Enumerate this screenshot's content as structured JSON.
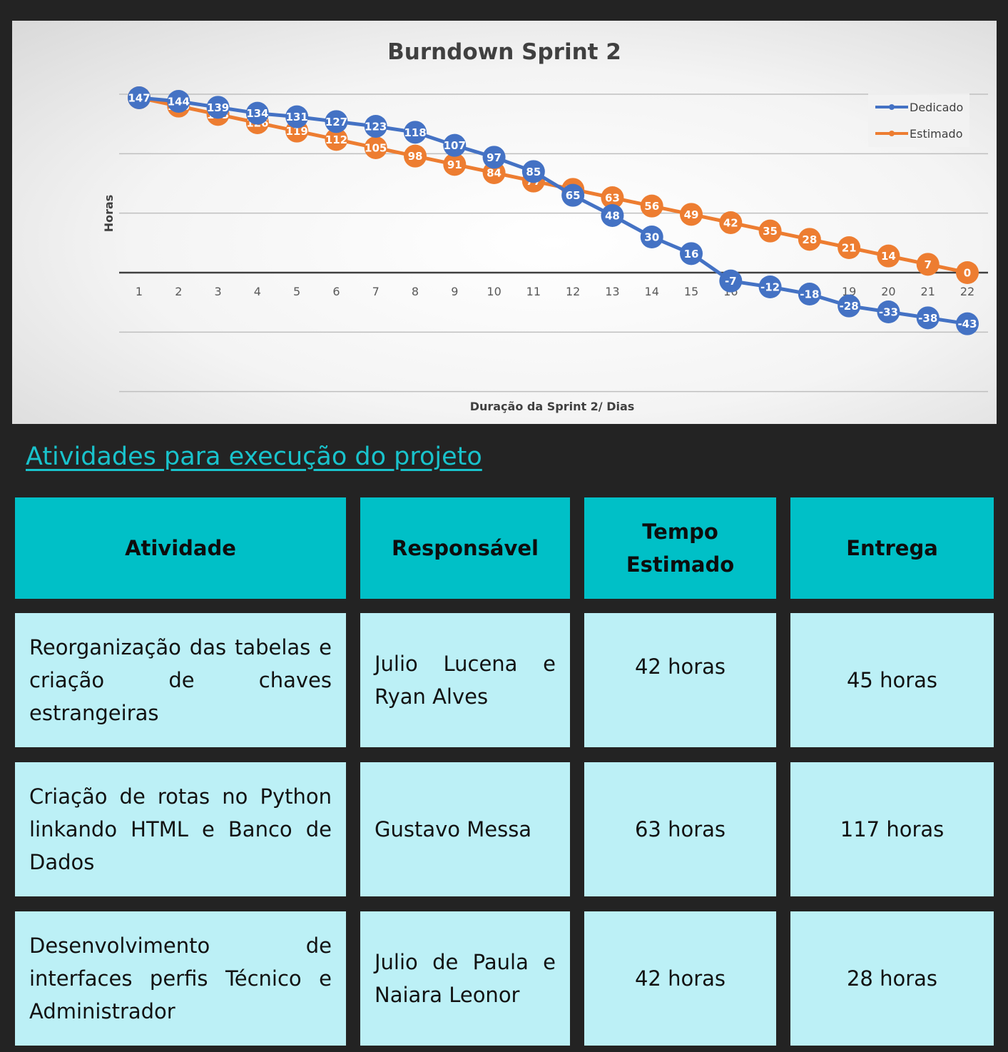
{
  "chart_data": {
    "type": "line",
    "title": "Burndown Sprint 2",
    "xlabel": "Duração da Sprint 2/ Dias",
    "ylabel": "Horas",
    "x": [
      1,
      2,
      3,
      4,
      5,
      6,
      7,
      8,
      9,
      10,
      11,
      12,
      13,
      14,
      15,
      16,
      17,
      18,
      19,
      20,
      21,
      22
    ],
    "series": [
      {
        "name": "Dedicado",
        "color": "#4472c4",
        "values": [
          147,
          144,
          139,
          134,
          131,
          127,
          123,
          118,
          107,
          97,
          85,
          65,
          48,
          30,
          16,
          -7,
          -12,
          -18,
          -28,
          -33,
          -38,
          -43
        ]
      },
      {
        "name": "Estimado",
        "color": "#ed7d31",
        "values": [
          147,
          140,
          133,
          126,
          119,
          112,
          105,
          98,
          91,
          84,
          77,
          70,
          63,
          56,
          49,
          42,
          35,
          28,
          21,
          14,
          7,
          0
        ]
      }
    ],
    "ylim": [
      -100,
      175
    ],
    "grid": true,
    "legend": "top-right"
  },
  "section": {
    "title": "Atividades para execução do projeto"
  },
  "table": {
    "headers": {
      "atividade": "Atividade",
      "responsavel": "Responsável",
      "tempo": "Tempo Estimado",
      "entrega": "Entrega"
    },
    "rows": [
      {
        "atividade": "Reorganização das tabelas e criação de chaves estrangeiras",
        "responsavel": "Julio Lucena e Ryan Alves",
        "tempo": "42 horas",
        "entrega": "45 horas"
      },
      {
        "atividade": "Criação de rotas no Python linkando HTML e Banco de Dados",
        "responsavel": "Gustavo Messa",
        "tempo": "63 horas",
        "entrega": "117 horas"
      },
      {
        "atividade": "Desenvolvimento de interfaces perfis Técnico e Administrador",
        "responsavel": "Julio de Paula e Naiara Leonor",
        "tempo": "42 horas",
        "entrega": "28 horas"
      }
    ]
  }
}
